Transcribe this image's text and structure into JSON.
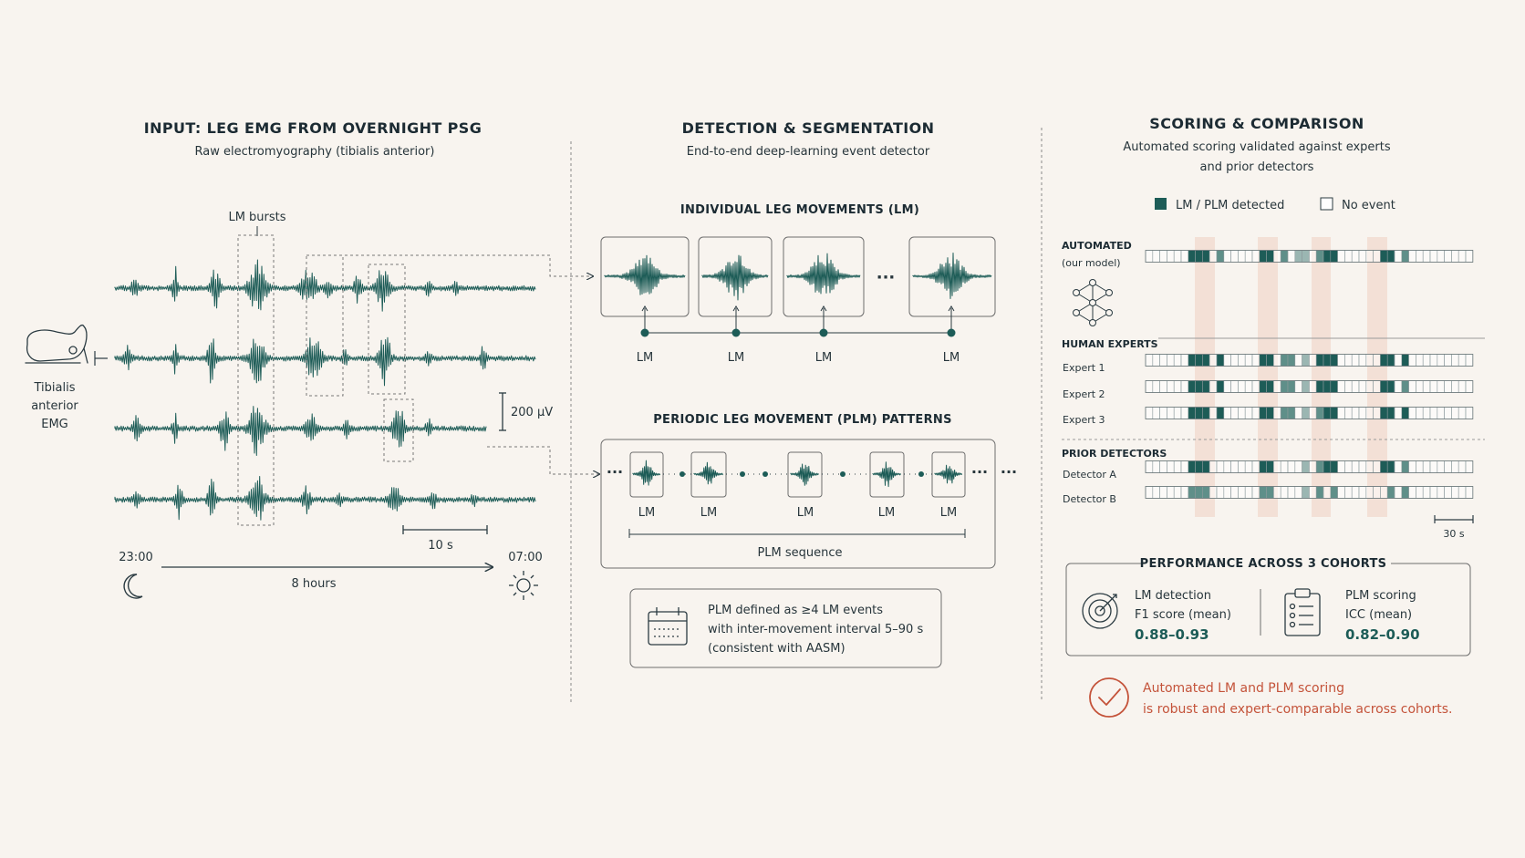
{
  "colors": {
    "background": "#f8f4ef",
    "teal": "#1d5c57",
    "teal_light": "#5f8f89",
    "highlight": "#f1d9cd",
    "accent": "#c4533a",
    "ink": "#1c2b33"
  },
  "input": {
    "title": "INPUT: LEG EMG FROM OVERNIGHT PSG",
    "subtitle": "Raw electromyography (tibialis anterior)",
    "bursts_label": "LM bursts",
    "leg_label": [
      "Tibialis",
      "anterior",
      "EMG"
    ],
    "amp_scale": "200 µV",
    "time_scale": "10 s",
    "start_time": "23:00",
    "end_time": "07:00",
    "duration": "8 hours",
    "icons": [
      "leg-icon",
      "moon-icon",
      "sun-icon"
    ]
  },
  "detection": {
    "title": "DETECTION & SEGMENTATION",
    "subtitle": "End-to-end deep-learning event detector",
    "lm_title": "INDIVIDUAL LEG MOVEMENTS (LM)",
    "lm_labels": [
      "LM",
      "LM",
      "LM",
      "LM"
    ],
    "plm_title": "PERIODIC LEG MOVEMENT (PLM) PATTERNS",
    "plm_labels": [
      "LM",
      "LM",
      "LM",
      "LM",
      "LM"
    ],
    "plm_sequence": "PLM sequence",
    "ellipsis": "···",
    "definition": [
      "PLM defined as ≥4 LM events",
      "with inter-movement interval 5–90 s",
      "(consistent with AASM)"
    ],
    "icons": [
      "calendar-icon"
    ]
  },
  "scoring": {
    "title": "SCORING & COMPARISON",
    "subtitle": [
      "Automated scoring validated against experts",
      "and prior detectors"
    ],
    "legend": [
      {
        "label": "LM / PLM detected",
        "color": "#1d5c57"
      },
      {
        "label": "No event",
        "color": "#ffffff"
      }
    ],
    "automated_header": "AUTOMATED",
    "automated_sub": "(our model)",
    "experts_header": "HUMAN EXPERTS",
    "prior_header": "PRIOR DETECTORS",
    "rows": [
      {
        "label": "",
        "cells": "0000001110200000110203302110000001102000000000"
      },
      {
        "label": "Expert 1",
        "cells": "0000001110100000110220301110000001101000000000"
      },
      {
        "label": "Expert 2",
        "cells": "0000001110100000110220301110000001102000000000"
      },
      {
        "label": "Expert 3",
        "cells": "0000001110100000110220302110000001101000000000"
      },
      {
        "label": "Detector A",
        "cells": "0000001110000000110000302110000001102000000000"
      },
      {
        "label": "Detector B",
        "cells": "0000002220000000220000302020000000202000000000"
      }
    ],
    "scale_label": "30 s",
    "performance_title": "PERFORMANCE ACROSS 3 COHORTS",
    "metrics": [
      {
        "name": "LM detection",
        "measure": "F1 score (mean)",
        "value": "0.88–0.93"
      },
      {
        "name": "PLM scoring",
        "measure": "ICC (mean)",
        "value": "0.82–0.90"
      }
    ],
    "conclusion": [
      "Automated LM and PLM scoring",
      "is robust and expert-comparable across cohorts."
    ],
    "icons": [
      "neural-network-icon",
      "target-icon",
      "clipboard-icon",
      "check-circle-icon"
    ]
  }
}
